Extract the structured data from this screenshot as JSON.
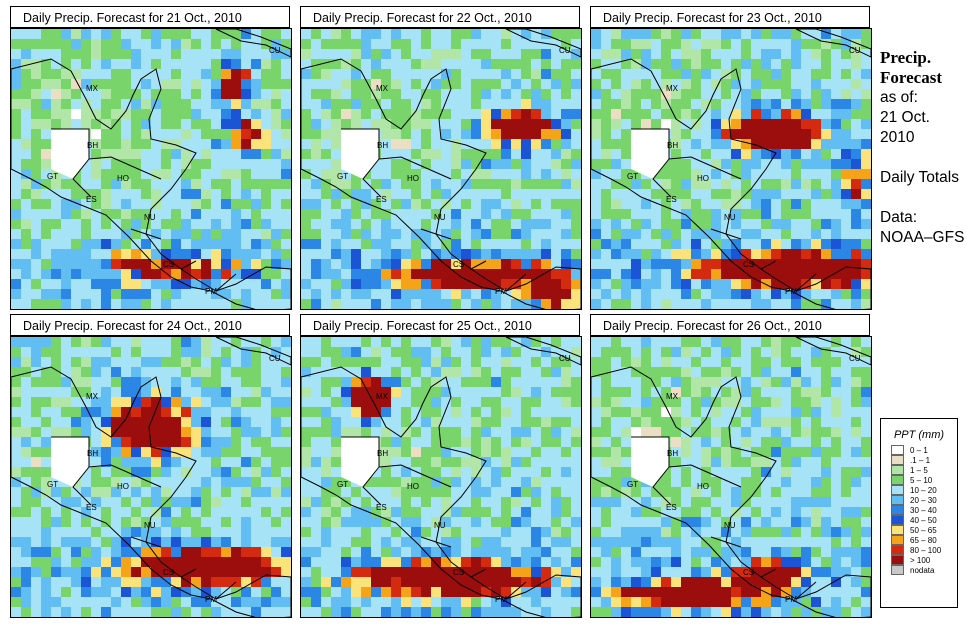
{
  "panels": [
    {
      "title": "Daily Precip. Forecast for  21 Oct., 2010"
    },
    {
      "title": "Daily Precip. Forecast for  22 Oct., 2010"
    },
    {
      "title": "Daily Precip. Forecast for  23 Oct., 2010"
    },
    {
      "title": "Daily Precip. Forecast for  24 Oct., 2010"
    },
    {
      "title": "Daily Precip. Forecast for  25 Oct., 2010"
    },
    {
      "title": "Daily Precip. Forecast for  26 Oct., 2010"
    }
  ],
  "country_labels": [
    "MX",
    "BH",
    "GT",
    "HO",
    "ES",
    "NU",
    "CS",
    "PM",
    "CU"
  ],
  "sidebar": {
    "title": "Precip. Forecast",
    "asof": "as of:",
    "date": "21 Oct. 2010",
    "daily": "Daily Totals",
    "source": "Data: NOAA–GFS"
  },
  "legend": {
    "title": "PPT (mm)",
    "items": [
      {
        "label": "0 – 1",
        "color": "#ffffff"
      },
      {
        "label": ".1 – 1",
        "color": "#eadfc4"
      },
      {
        "label": "1 – 5",
        "color": "#b2e6a8"
      },
      {
        "label": "5 – 10",
        "color": "#79d46b"
      },
      {
        "label": "10 – 20",
        "color": "#a6e3f7"
      },
      {
        "label": "20 – 30",
        "color": "#62bdf2"
      },
      {
        "label": "30 – 40",
        "color": "#2b86e6"
      },
      {
        "label": "40 – 50",
        "color": "#1b55d6"
      },
      {
        "label": "50 – 65",
        "color": "#fbe37c"
      },
      {
        "label": "65 – 80",
        "color": "#f5a318"
      },
      {
        "label": "80 – 100",
        "color": "#d42a10"
      },
      {
        "label": "> 100",
        "color": "#9c0e0e"
      },
      {
        "label": "nodata",
        "color": "#c8c8c8"
      }
    ]
  }
}
